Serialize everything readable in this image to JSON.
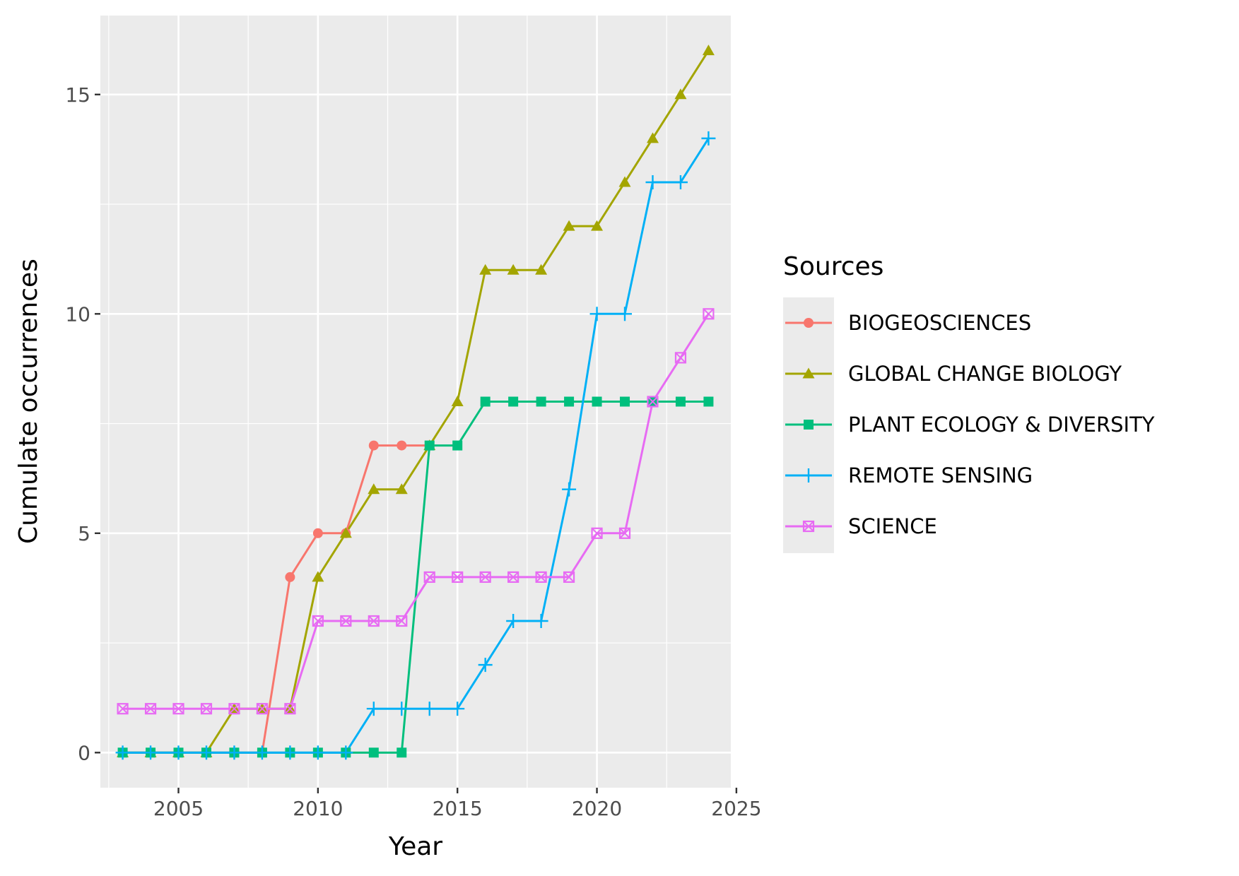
{
  "chart_data": {
    "type": "line",
    "xlabel": "Year",
    "ylabel": "Cumulate occurrences",
    "xlim": [
      2002.2,
      2024.8
    ],
    "ylim": [
      -0.8,
      16.8
    ],
    "x_ticks": [
      2005,
      2010,
      2015,
      2020,
      2025
    ],
    "y_ticks": [
      0,
      5,
      10,
      15
    ],
    "grid": true,
    "legend_position": "right",
    "legend_title": "Sources",
    "series": [
      {
        "name": "BIOGEOSCIENCES",
        "color": "#F8766D",
        "marker": "circle",
        "x": [
          2003,
          2004,
          2005,
          2006,
          2007,
          2008,
          2009,
          2010,
          2011,
          2012,
          2013,
          2014
        ],
        "values": [
          0,
          0,
          0,
          0,
          0,
          0,
          4,
          5,
          5,
          7,
          7,
          7
        ]
      },
      {
        "name": "GLOBAL CHANGE BIOLOGY",
        "color": "#A3A500",
        "marker": "triangle",
        "x": [
          2003,
          2004,
          2005,
          2006,
          2007,
          2008,
          2009,
          2010,
          2011,
          2012,
          2013,
          2014,
          2015,
          2016,
          2017,
          2018,
          2019,
          2020,
          2021,
          2022,
          2023,
          2024
        ],
        "values": [
          0,
          0,
          0,
          0,
          1,
          1,
          1,
          4,
          5,
          6,
          6,
          7,
          8,
          11,
          11,
          11,
          12,
          12,
          13,
          14,
          15,
          16
        ]
      },
      {
        "name": "PLANT ECOLOGY & DIVERSITY",
        "color": "#00BF7D",
        "marker": "square",
        "x": [
          2003,
          2004,
          2005,
          2006,
          2007,
          2008,
          2009,
          2010,
          2011,
          2012,
          2013,
          2014,
          2015,
          2016,
          2017,
          2018,
          2019,
          2020,
          2021,
          2022,
          2023,
          2024
        ],
        "values": [
          0,
          0,
          0,
          0,
          0,
          0,
          0,
          0,
          0,
          0,
          0,
          7,
          7,
          8,
          8,
          8,
          8,
          8,
          8,
          8,
          8,
          8
        ]
      },
      {
        "name": "REMOTE SENSING",
        "color": "#00B0F6",
        "marker": "plus",
        "x": [
          2003,
          2004,
          2005,
          2006,
          2007,
          2008,
          2009,
          2010,
          2011,
          2012,
          2013,
          2014,
          2015,
          2016,
          2017,
          2018,
          2019,
          2020,
          2021,
          2022,
          2023,
          2024
        ],
        "values": [
          0,
          0,
          0,
          0,
          0,
          0,
          0,
          0,
          0,
          1,
          1,
          1,
          1,
          2,
          3,
          3,
          6,
          10,
          10,
          13,
          13,
          14
        ]
      },
      {
        "name": "SCIENCE",
        "color": "#E76BF3",
        "marker": "square-cross",
        "x": [
          2003,
          2004,
          2005,
          2006,
          2007,
          2008,
          2009,
          2010,
          2011,
          2012,
          2013,
          2014,
          2015,
          2016,
          2017,
          2018,
          2019,
          2020,
          2021,
          2022,
          2023,
          2024
        ],
        "values": [
          1,
          1,
          1,
          1,
          1,
          1,
          1,
          3,
          3,
          3,
          3,
          4,
          4,
          4,
          4,
          4,
          4,
          5,
          5,
          8,
          9,
          10
        ]
      }
    ]
  }
}
